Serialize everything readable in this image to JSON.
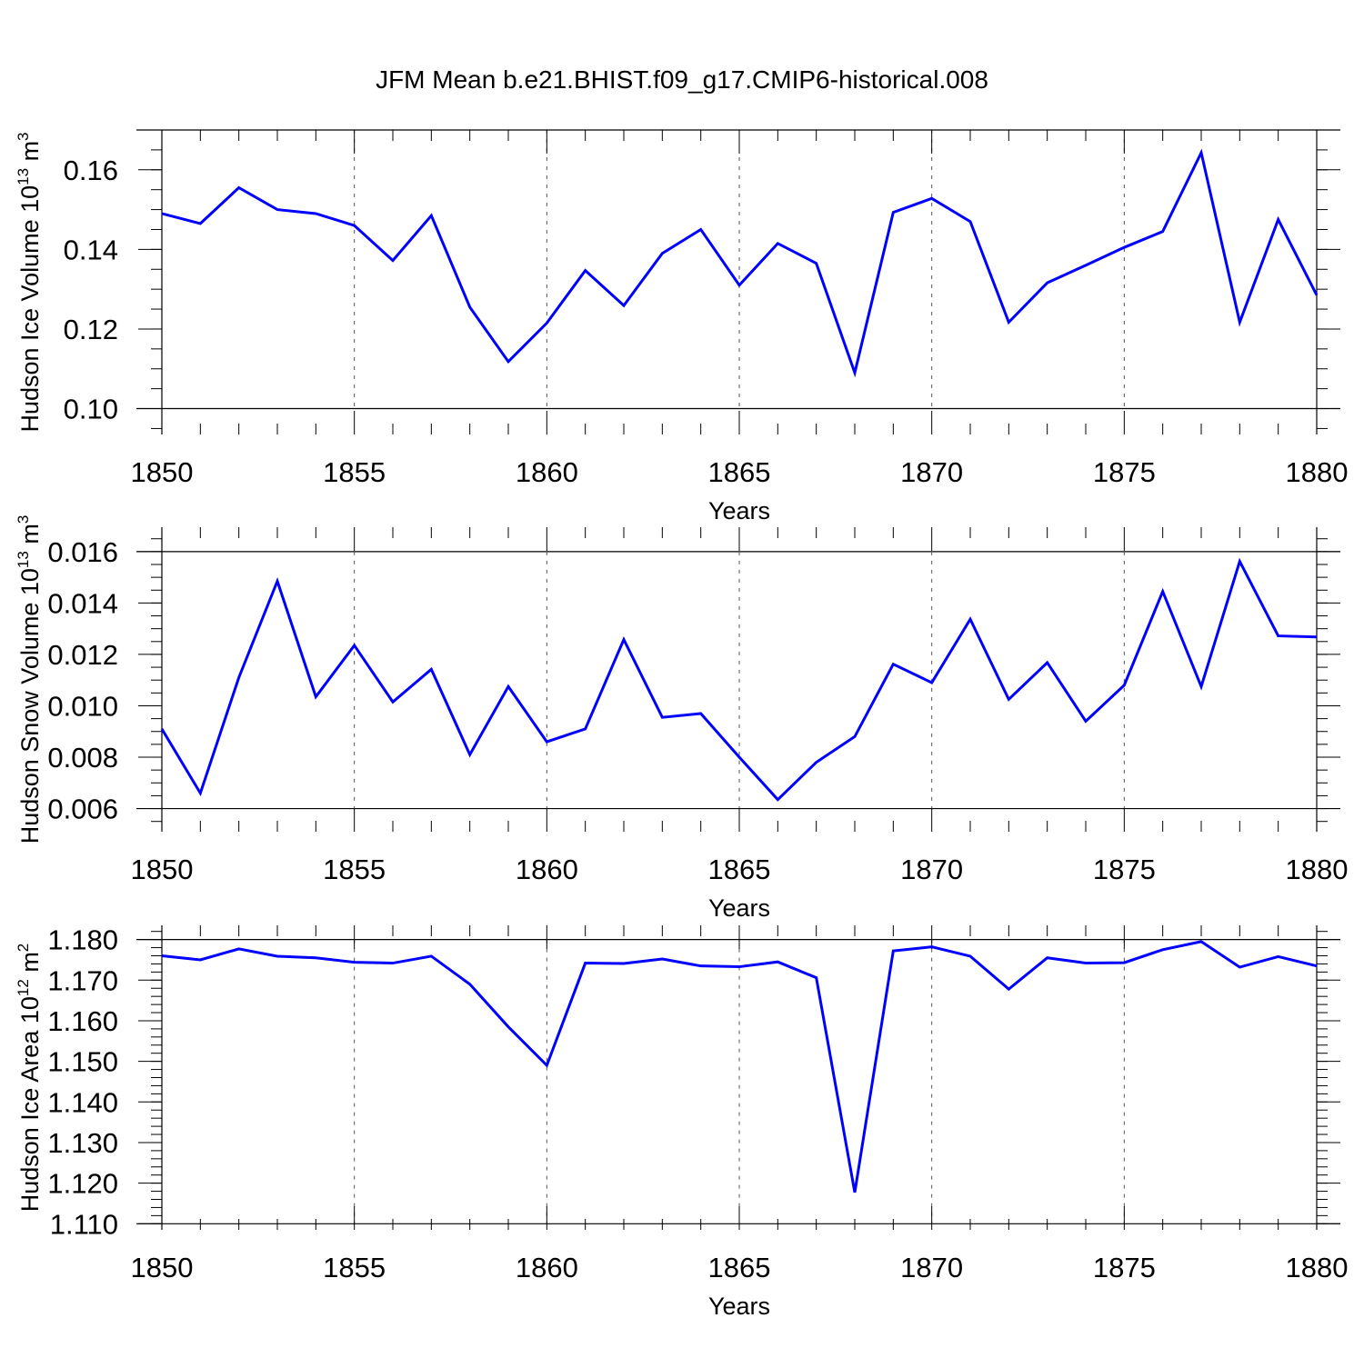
{
  "title": "JFM Mean b.e21.BHIST.f09_g17.CMIP6-historical.008",
  "line_color": "#0000ff",
  "chart_data": [
    {
      "type": "line",
      "xlabel": "Years",
      "ylabel": "Hudson Ice Volume",
      "ylabel_unit_base": "10",
      "ylabel_unit_exp": "13",
      "ylabel_unit_tail": "m",
      "ylabel_unit_tail_exp": "3",
      "xlim": [
        1850,
        1880
      ],
      "ylim": [
        0.0935,
        0.17
      ],
      "x_ticks": [
        1850,
        1855,
        1860,
        1865,
        1870,
        1875,
        1880
      ],
      "x_tick_labels": [
        "1850",
        "1855",
        "1860",
        "1865",
        "1870",
        "1875",
        "1880"
      ],
      "y_ticks": [
        0.1,
        0.12,
        0.14,
        0.16
      ],
      "y_tick_labels": [
        "0.10",
        "0.12",
        "0.14",
        "0.16"
      ],
      "y_minor_step": 0.005,
      "x": [
        1850,
        1851,
        1852,
        1853,
        1854,
        1855,
        1856,
        1857,
        1858,
        1859,
        1860,
        1861,
        1862,
        1863,
        1864,
        1865,
        1866,
        1867,
        1868,
        1869,
        1870,
        1871,
        1872,
        1873,
        1874,
        1875,
        1876,
        1877,
        1878,
        1879,
        1880
      ],
      "series": [
        {
          "name": "Hudson Ice Volume",
          "values": [
            0.149,
            0.1465,
            0.1555,
            0.15,
            0.149,
            0.146,
            0.1372,
            0.1485,
            0.1255,
            0.1118,
            0.1215,
            0.1347,
            0.1259,
            0.139,
            0.145,
            0.131,
            0.1415,
            0.1365,
            0.109,
            0.1493,
            0.1528,
            0.147,
            0.1217,
            0.1316,
            0.136,
            0.1405,
            0.1445,
            0.1643,
            0.1217,
            0.1475,
            0.1285
          ]
        }
      ]
    },
    {
      "type": "line",
      "xlabel": "Years",
      "ylabel": "Hudson Snow Volume",
      "ylabel_unit_base": "10",
      "ylabel_unit_exp": "13",
      "ylabel_unit_tail": "m",
      "ylabel_unit_tail_exp": "3",
      "xlim": [
        1850,
        1880
      ],
      "ylim": [
        0.0051,
        0.01695
      ],
      "x_ticks": [
        1850,
        1855,
        1860,
        1865,
        1870,
        1875,
        1880
      ],
      "x_tick_labels": [
        "1850",
        "1855",
        "1860",
        "1865",
        "1870",
        "1875",
        "1880"
      ],
      "y_ticks": [
        0.006,
        0.008,
        0.01,
        0.012,
        0.014,
        0.016
      ],
      "y_tick_labels": [
        "0.006",
        "0.008",
        "0.010",
        "0.012",
        "0.014",
        "0.016"
      ],
      "y_minor_step": 0.0005,
      "x": [
        1850,
        1851,
        1852,
        1853,
        1854,
        1855,
        1856,
        1857,
        1858,
        1859,
        1860,
        1861,
        1862,
        1863,
        1864,
        1865,
        1866,
        1867,
        1868,
        1869,
        1870,
        1871,
        1872,
        1873,
        1874,
        1875,
        1876,
        1877,
        1878,
        1879,
        1880
      ],
      "series": [
        {
          "name": "Hudson Snow Volume",
          "values": [
            0.0091,
            0.0066,
            0.0111,
            0.01485,
            0.01035,
            0.01235,
            0.01015,
            0.01142,
            0.0081,
            0.01075,
            0.0086,
            0.0091,
            0.01258,
            0.00955,
            0.0097,
            0.008,
            0.00635,
            0.0078,
            0.0088,
            0.01162,
            0.0109,
            0.01337,
            0.01025,
            0.01168,
            0.0094,
            0.0108,
            0.01445,
            0.01075,
            0.01562,
            0.01272,
            0.01268
          ]
        }
      ]
    },
    {
      "type": "line",
      "xlabel": "Years",
      "ylabel": "Hudson Ice Area",
      "ylabel_unit_base": "10",
      "ylabel_unit_exp": "12",
      "ylabel_unit_tail": "m",
      "ylabel_unit_tail_exp": "2",
      "xlim": [
        1850,
        1880
      ],
      "ylim": [
        1.1085,
        1.1835
      ],
      "x_ticks": [
        1850,
        1855,
        1860,
        1865,
        1870,
        1875,
        1880
      ],
      "x_tick_labels": [
        "1850",
        "1855",
        "1860",
        "1865",
        "1870",
        "1875",
        "1880"
      ],
      "y_ticks": [
        1.11,
        1.12,
        1.13,
        1.14,
        1.15,
        1.16,
        1.17,
        1.18
      ],
      "y_tick_labels": [
        "1.110",
        "1.120",
        "1.130",
        "1.140",
        "1.150",
        "1.160",
        "1.170",
        "1.180"
      ],
      "y_minor_step": 0.002,
      "x": [
        1850,
        1851,
        1852,
        1853,
        1854,
        1855,
        1856,
        1857,
        1858,
        1859,
        1860,
        1861,
        1862,
        1863,
        1864,
        1865,
        1866,
        1867,
        1868,
        1869,
        1870,
        1871,
        1872,
        1873,
        1874,
        1875,
        1876,
        1877,
        1878,
        1879,
        1880
      ],
      "series": [
        {
          "name": "Hudson Ice Area",
          "values": [
            1.176,
            1.175,
            1.1777,
            1.1759,
            1.1755,
            1.1744,
            1.1742,
            1.1759,
            1.169,
            1.1585,
            1.149,
            1.1742,
            1.1741,
            1.1752,
            1.1735,
            1.1733,
            1.1745,
            1.1706,
            1.1177,
            1.1772,
            1.1782,
            1.1759,
            1.1678,
            1.1755,
            1.1742,
            1.1743,
            1.1775,
            1.1795,
            1.1732,
            1.1758,
            1.1735
          ]
        }
      ]
    }
  ]
}
